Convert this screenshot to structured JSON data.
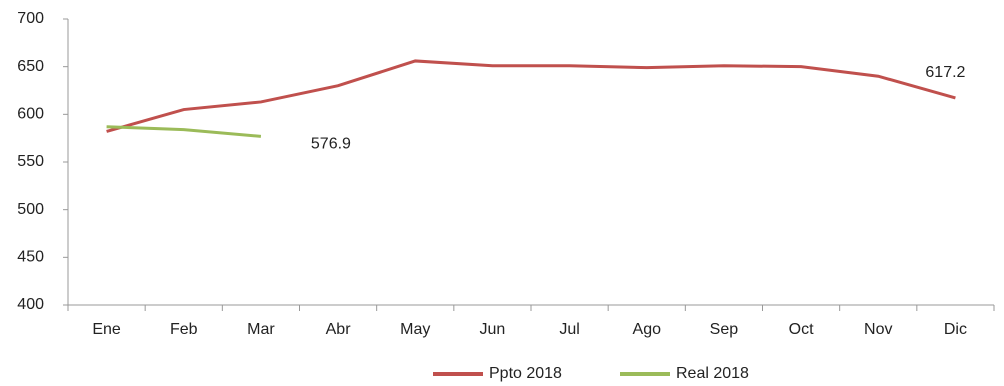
{
  "chart_data": {
    "type": "line",
    "categories": [
      "Ene",
      "Feb",
      "Mar",
      "Abr",
      "May",
      "Jun",
      "Jul",
      "Ago",
      "Sep",
      "Oct",
      "Nov",
      "Dic"
    ],
    "series": [
      {
        "name": "Ppto 2018",
        "color": "#c0504d",
        "values": [
          582,
          605,
          613,
          630,
          656,
          651,
          651,
          649,
          651,
          650,
          640,
          617.2
        ]
      },
      {
        "name": "Real 2018",
        "color": "#9bbb59",
        "values": [
          587,
          584,
          576.9,
          null,
          null,
          null,
          null,
          null,
          null,
          null,
          null,
          null
        ]
      }
    ],
    "ylim": [
      400,
      700
    ],
    "yticks": [
      400,
      450,
      500,
      550,
      600,
      650,
      700
    ],
    "grid": false,
    "legend": "bottom"
  }
}
